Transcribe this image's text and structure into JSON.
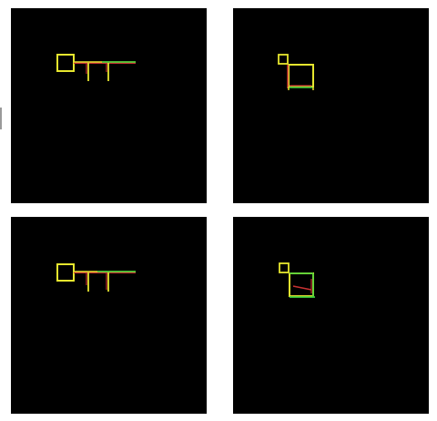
{
  "figure": {
    "panel_count": 4,
    "background_color": "#000000",
    "page_background": "#ffffff"
  },
  "palette": {
    "yellow": "#e6e62e",
    "green": "#3ccc3c",
    "red": "#c83232"
  },
  "panels": [
    {
      "position": "top-left",
      "shape": "box-with-bar-and-drops",
      "colors": [
        "yellow",
        "green",
        "red"
      ]
    },
    {
      "position": "top-right",
      "shape": "small-box-and-large-box",
      "colors": [
        "yellow",
        "green",
        "red"
      ]
    },
    {
      "position": "bottom-left",
      "shape": "box-with-bar-and-drops",
      "colors": [
        "yellow",
        "green",
        "red"
      ]
    },
    {
      "position": "bottom-right",
      "shape": "small-box-and-large-box",
      "colors": [
        "yellow",
        "green",
        "red"
      ]
    }
  ]
}
